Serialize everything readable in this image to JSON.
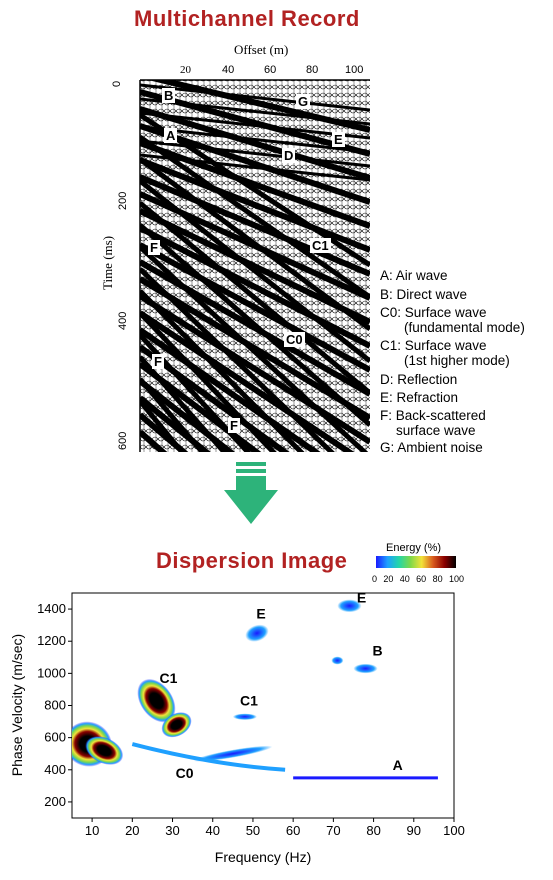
{
  "top": {
    "title": "Multichannel Record",
    "x_axis_label": "Offset (m)",
    "x_ticks": [
      "20",
      "40",
      "60",
      "80",
      "100"
    ],
    "y_axis_label": "Time (ms)",
    "y_ticks": [
      "0",
      "200",
      "400",
      "600"
    ],
    "event_labels": [
      "B",
      "G",
      "A",
      "E",
      "D",
      "F",
      "C1",
      "C0",
      "F",
      "F"
    ],
    "legend": [
      "A: Air wave",
      "B: Direct wave",
      "C0: Surface wave",
      "(fundamental mode)",
      "C1: Surface wave",
      "(1st higher mode)",
      "D: Reflection",
      "E: Refraction",
      "F: Back-scattered",
      "surface wave",
      "G: Ambient noise"
    ]
  },
  "arrow": {
    "color": "#2db37a"
  },
  "bottom": {
    "title": "Dispersion Image",
    "colorbar": {
      "label": "Energy (%)",
      "ticks": [
        "0",
        "20",
        "40",
        "60",
        "80",
        "100"
      ],
      "colors": [
        "#1a1aff",
        "#1fa0ff",
        "#24d6a8",
        "#7dd84a",
        "#f2e23a",
        "#d85a1e",
        "#8b0000",
        "#000000"
      ]
    },
    "chart_data": {
      "type": "heatmap",
      "xlabel": "Frequency (Hz)",
      "ylabel": "Phase Velocity (m/sec)",
      "xlim": [
        5,
        100
      ],
      "ylim": [
        100,
        1500
      ],
      "x_ticks": [
        "10",
        "20",
        "30",
        "40",
        "50",
        "60",
        "70",
        "80",
        "90",
        "100"
      ],
      "y_ticks": [
        "200",
        "400",
        "600",
        "800",
        "1000",
        "1200",
        "1400"
      ],
      "annotations": [
        "C0",
        "C1",
        "C1",
        "E",
        "E",
        "B",
        "A"
      ]
    }
  }
}
